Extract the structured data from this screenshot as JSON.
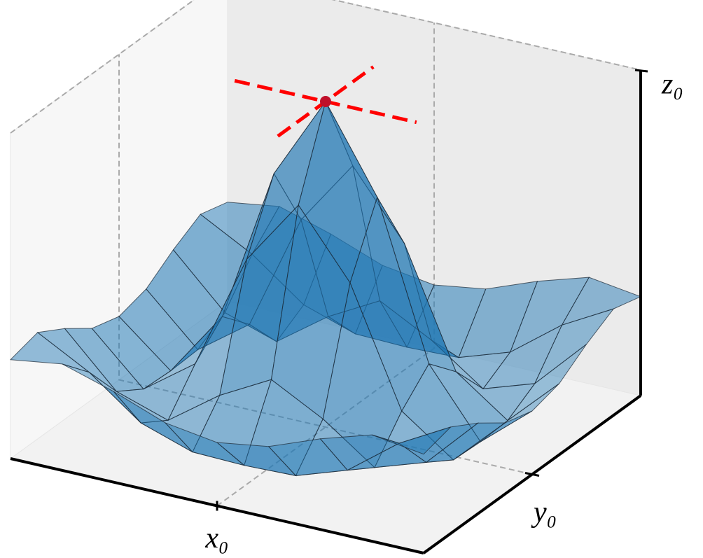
{
  "chart_data": {
    "type": "surface",
    "x": [
      -6,
      -4.5,
      -3,
      -1.5,
      0,
      1.5,
      3,
      4.5,
      6
    ],
    "y": [
      -6,
      -4.5,
      -3,
      -1.5,
      0,
      1.5,
      3,
      4.5,
      6
    ],
    "z": [
      [
        0.095,
        0.125,
        0.062,
        -0.016,
        -0.047,
        -0.016,
        0.062,
        0.125,
        0.095
      ],
      [
        0.125,
        0.013,
        -0.142,
        -0.211,
        -0.217,
        -0.211,
        -0.142,
        0.013,
        0.125
      ],
      [
        0.062,
        -0.142,
        -0.21,
        -0.063,
        0.047,
        -0.063,
        -0.21,
        -0.142,
        0.062
      ],
      [
        -0.016,
        -0.211,
        -0.063,
        0.402,
        0.665,
        0.402,
        -0.063,
        -0.211,
        -0.016
      ],
      [
        -0.047,
        -0.217,
        0.047,
        0.665,
        1,
        0.665,
        0.047,
        -0.217,
        -0.047
      ],
      [
        -0.016,
        -0.211,
        -0.063,
        0.402,
        0.665,
        0.402,
        -0.063,
        -0.211,
        -0.016
      ],
      [
        0.062,
        -0.142,
        -0.21,
        -0.063,
        0.047,
        -0.063,
        -0.21,
        -0.142,
        0.062
      ],
      [
        0.125,
        0.013,
        -0.142,
        -0.211,
        -0.217,
        -0.211,
        -0.142,
        0.013,
        0.125
      ],
      [
        0.095,
        0.125,
        0.062,
        -0.016,
        -0.047,
        -0.016,
        0.062,
        0.125,
        0.095
      ]
    ],
    "color": "#1f77b4",
    "alpha": 0.35,
    "point": {
      "x": 0,
      "y": 0,
      "z": 1,
      "color": "#c0102a"
    },
    "tangent_color": "#ff0000",
    "xlim": [
      -6,
      6
    ],
    "ylim": [
      -6,
      6
    ],
    "zlim": [
      -0.3,
      1
    ],
    "xticks": [
      {
        "value": 0,
        "label": "x₀"
      }
    ],
    "yticks": [
      {
        "value": 0,
        "label": "y₀"
      }
    ],
    "zticks": [
      {
        "value": 1,
        "label": "z₀"
      }
    ],
    "grid": true
  }
}
